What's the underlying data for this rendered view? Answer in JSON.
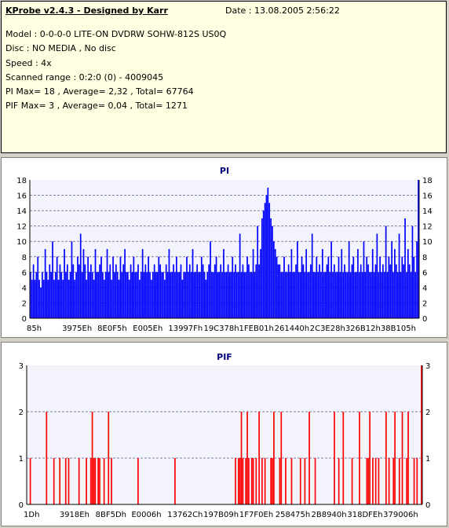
{
  "info": {
    "title": "KProbe v2.4.3 - Designed by Karr",
    "date": "Date : 13.08.2005 2:56:22",
    "model": "Model : 0-0-0-0 LITE-ON DVDRW SOHW-812S  US0Q",
    "disc": "Disc : NO MEDIA , No disc",
    "speed": "Speed : 4x",
    "range": "Scanned range : 0:2:0 (0) - 4009045",
    "pi": "PI Max= 18 , Average= 2,32 , Total= 67764",
    "pif": "PIF Max= 3 , Average= 0,04 , Total= 1271"
  },
  "chart_data": [
    {
      "type": "bar",
      "title": "PI",
      "color": "#0000ff",
      "ylim": [
        0,
        18
      ],
      "yticks": [
        0,
        2,
        4,
        6,
        8,
        10,
        12,
        14,
        16,
        18
      ],
      "xticks": [
        "85h",
        "3975Eh",
        "8E0F5h",
        "E005Eh",
        "13997Fh",
        "19C378h",
        "1FEB01h",
        "261440h",
        "2C3E28h",
        "326B12h",
        "38B105h"
      ],
      "grid": true,
      "values": [
        6,
        5,
        7,
        5,
        6,
        8,
        5,
        4,
        6,
        5,
        9,
        6,
        5,
        7,
        6,
        10,
        5,
        6,
        8,
        5,
        7,
        6,
        5,
        9,
        6,
        7,
        5,
        6,
        10,
        7,
        5,
        6,
        8,
        7,
        11,
        6,
        9,
        7,
        5,
        8,
        6,
        7,
        6,
        5,
        9,
        6,
        6,
        7,
        8,
        6,
        5,
        6,
        9,
        6,
        7,
        5,
        8,
        6,
        7,
        6,
        5,
        8,
        6,
        7,
        9,
        6,
        6,
        5,
        7,
        6,
        8,
        6,
        6,
        7,
        5,
        6,
        9,
        6,
        7,
        6,
        8,
        6,
        5,
        6,
        7,
        6,
        6,
        8,
        7,
        6,
        6,
        5,
        7,
        6,
        9,
        6,
        6,
        7,
        6,
        8,
        6,
        6,
        7,
        5,
        6,
        6,
        8,
        6,
        7,
        6,
        9,
        6,
        6,
        7,
        6,
        6,
        8,
        7,
        6,
        5,
        6,
        7,
        10,
        6,
        6,
        7,
        8,
        6,
        6,
        7,
        6,
        9,
        6,
        6,
        7,
        6,
        6,
        8,
        6,
        7,
        6,
        6,
        11,
        6,
        7,
        6,
        6,
        8,
        7,
        6,
        6,
        9,
        6,
        7,
        12,
        7,
        9,
        13,
        14,
        15,
        16,
        17,
        15,
        13,
        12,
        10,
        9,
        8,
        7,
        7,
        6,
        6,
        8,
        6,
        6,
        7,
        6,
        9,
        6,
        6,
        7,
        10,
        6,
        6,
        8,
        7,
        6,
        9,
        6,
        6,
        7,
        11,
        6,
        6,
        8,
        6,
        7,
        6,
        9,
        6,
        6,
        7,
        8,
        6,
        10,
        6,
        7,
        6,
        6,
        8,
        6,
        9,
        6,
        7,
        6,
        6,
        10,
        6,
        7,
        8,
        6,
        6,
        9,
        6,
        7,
        6,
        10,
        6,
        8,
        7,
        6,
        6,
        9,
        6,
        7,
        11,
        6,
        8,
        6,
        7,
        6,
        12,
        6,
        8,
        7,
        10,
        6,
        9,
        7,
        6,
        11,
        6,
        8,
        7,
        13,
        6,
        9,
        7,
        6,
        12,
        8,
        6,
        10,
        18
      ]
    },
    {
      "type": "bar",
      "title": "PIF",
      "color": "#ff0000",
      "ylim": [
        0,
        3
      ],
      "yticks": [
        0,
        1,
        2,
        3
      ],
      "xticks": [
        "1Dh",
        "3918Eh",
        "8BF5Dh",
        "E0006h",
        "13762Ch",
        "197B09h",
        "1F7F0Eh",
        "258475h",
        "2B8940h",
        "318DFEh",
        "379006h"
      ],
      "grid": true,
      "values": [
        0,
        0,
        1,
        0,
        0,
        0,
        0,
        0,
        0,
        0,
        0,
        0,
        0,
        2,
        0,
        0,
        0,
        0,
        1,
        0,
        0,
        0,
        1,
        0,
        0,
        0,
        1,
        0,
        1,
        0,
        0,
        0,
        0,
        0,
        0,
        1,
        0,
        0,
        0,
        0,
        1,
        0,
        0,
        1,
        2,
        1,
        1,
        0,
        1,
        1,
        0,
        0,
        1,
        0,
        0,
        2,
        0,
        1,
        0,
        0,
        0,
        0,
        0,
        0,
        0,
        0,
        0,
        0,
        0,
        0,
        0,
        0,
        0,
        0,
        0,
        1,
        0,
        0,
        0,
        0,
        0,
        0,
        0,
        0,
        0,
        0,
        0,
        0,
        0,
        0,
        0,
        0,
        0,
        0,
        0,
        0,
        0,
        0,
        0,
        0,
        1,
        0,
        0,
        0,
        0,
        0,
        0,
        0,
        0,
        0,
        0,
        0,
        0,
        0,
        0,
        0,
        0,
        0,
        0,
        0,
        0,
        0,
        0,
        0,
        0,
        0,
        0,
        0,
        0,
        0,
        0,
        0,
        0,
        0,
        0,
        0,
        0,
        0,
        0,
        0,
        0,
        1,
        0,
        1,
        1,
        2,
        1,
        0,
        1,
        2,
        1,
        0,
        1,
        1,
        0,
        1,
        0,
        2,
        0,
        1,
        0,
        1,
        0,
        0,
        0,
        1,
        1,
        2,
        0,
        0,
        0,
        1,
        2,
        0,
        0,
        1,
        0,
        0,
        0,
        1,
        0,
        0,
        0,
        0,
        0,
        1,
        0,
        0,
        1,
        0,
        0,
        2,
        0,
        0,
        0,
        1,
        0,
        0,
        0,
        0,
        0,
        0,
        0,
        0,
        0,
        0,
        0,
        0,
        2,
        0,
        0,
        1,
        0,
        0,
        2,
        0,
        0,
        0,
        0,
        0,
        1,
        0,
        0,
        0,
        0,
        2,
        0,
        0,
        0,
        0,
        1,
        1,
        2,
        0,
        1,
        0,
        1,
        0,
        1,
        0,
        0,
        0,
        0,
        2,
        0,
        1,
        0,
        0,
        1,
        2,
        0,
        0,
        1,
        0,
        2,
        0,
        0,
        1,
        2,
        0,
        0,
        0,
        1,
        0,
        1,
        0,
        0,
        3
      ]
    }
  ]
}
